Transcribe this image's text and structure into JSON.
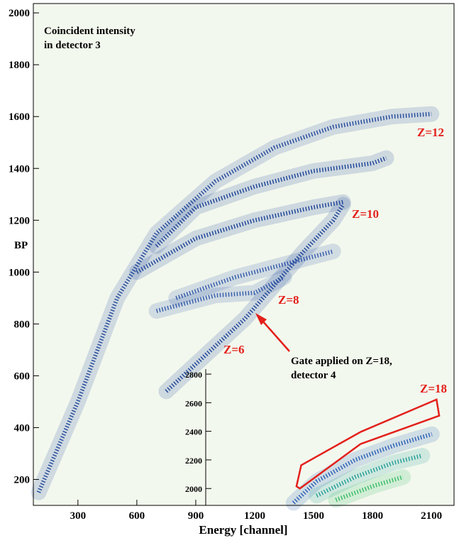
{
  "chart_data": [
    {
      "type": "density",
      "title_lines": [
        "Coincident intensity",
        "in detector 3"
      ],
      "x_label": "Energy [channel]",
      "y_label": "BP",
      "xlim": [
        73,
        2215
      ],
      "ylim": [
        100,
        2036
      ],
      "xticks": [
        300,
        600,
        900,
        1200,
        1500,
        1800,
        2100
      ],
      "yticks": [
        200,
        400,
        600,
        800,
        1000,
        1200,
        1400,
        1600,
        1800,
        2000
      ],
      "labels": [
        "Z=12",
        "Z=10",
        "Z=8",
        "Z=6"
      ],
      "note_lines": [
        "Gate applied on Z=18,",
        "detector 4"
      ],
      "series": [
        {
          "color": "#2a4f9e",
          "x": [
            100,
            300,
            500,
            700,
            1000,
            1300,
            1600,
            1900,
            2100
          ],
          "values": [
            150,
            500,
            900,
            1150,
            1350,
            1480,
            1560,
            1600,
            1610
          ]
        },
        {
          "color": "#23489a",
          "x": [
            700,
            900,
            1200,
            1500,
            1800,
            1870
          ],
          "values": [
            1100,
            1250,
            1330,
            1390,
            1420,
            1440
          ]
        },
        {
          "color": "#23489a",
          "x": [
            600,
            900,
            1200,
            1500,
            1650
          ],
          "values": [
            1000,
            1130,
            1200,
            1250,
            1270
          ]
        },
        {
          "color": "#3a5fae",
          "x": [
            800,
            1100,
            1400,
            1600
          ],
          "values": [
            900,
            980,
            1040,
            1080
          ]
        },
        {
          "color": "#3a5fae",
          "x": [
            700,
            1000,
            1200,
            1350
          ],
          "values": [
            850,
            910,
            920,
            980
          ]
        },
        {
          "color": "#23489a",
          "x": [
            750,
            950,
            1150,
            1300,
            1450,
            1600,
            1650
          ],
          "values": [
            540,
            680,
            820,
            950,
            1080,
            1200,
            1260
          ]
        }
      ]
    },
    {
      "type": "density",
      "xlim": [
        923,
        2215
      ],
      "ylim": [
        1882,
        2835
      ],
      "yticks": [
        2000,
        2200,
        2400,
        2600,
        2800
      ],
      "labels": [
        "Z=18"
      ],
      "gate": {
        "color": "#e3201b",
        "x": [
          1395,
          1420,
          1728,
          2124,
          2138,
          1728,
          1413
        ],
        "values": [
          2015,
          2163,
          2395,
          2622,
          2509,
          2311,
          2000
        ]
      },
      "series": [
        {
          "color": "#2f62b8",
          "x": [
            1380,
            1500,
            1700,
            1900,
            2100
          ],
          "values": [
            1900,
            2050,
            2200,
            2300,
            2380
          ]
        },
        {
          "color": "#2aa09a",
          "x": [
            1500,
            1700,
            1900,
            2050
          ],
          "values": [
            1950,
            2080,
            2180,
            2230
          ]
        },
        {
          "color": "#3cbf6a",
          "x": [
            1600,
            1800,
            1950
          ],
          "values": [
            1920,
            2020,
            2080
          ]
        }
      ]
    }
  ]
}
